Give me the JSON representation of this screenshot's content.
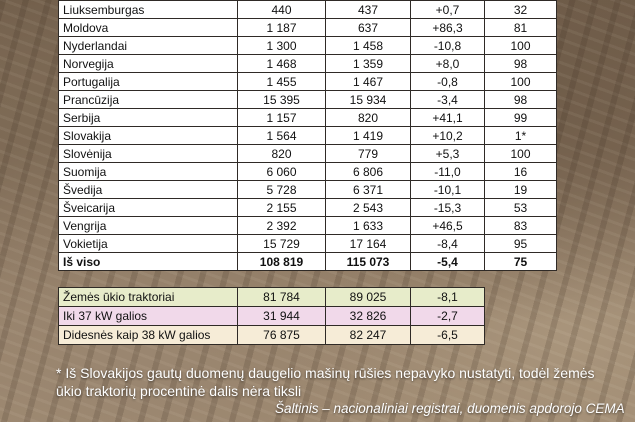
{
  "main_rows": [
    {
      "country": "Liuksemburgas",
      "v1": "440",
      "v2": "437",
      "change": "+0,7",
      "share": "32"
    },
    {
      "country": "Moldova",
      "v1": "1 187",
      "v2": "637",
      "change": "+86,3",
      "share": "81"
    },
    {
      "country": "Nyderlandai",
      "v1": "1 300",
      "v2": "1 458",
      "change": "-10,8",
      "share": "100"
    },
    {
      "country": "Norvegija",
      "v1": "1 468",
      "v2": "1 359",
      "change": "+8,0",
      "share": "98"
    },
    {
      "country": "Portugalija",
      "v1": "1 455",
      "v2": "1 467",
      "change": "-0,8",
      "share": "100"
    },
    {
      "country": "Prancūzija",
      "v1": "15 395",
      "v2": "15 934",
      "change": "-3,4",
      "share": "98"
    },
    {
      "country": "Serbija",
      "v1": "1 157",
      "v2": "820",
      "change": "+41,1",
      "share": "99"
    },
    {
      "country": "Slovakija",
      "v1": "1 564",
      "v2": "1 419",
      "change": "+10,2",
      "share": "1*"
    },
    {
      "country": "Slovėnija",
      "v1": "820",
      "v2": "779",
      "change": "+5,3",
      "share": "100"
    },
    {
      "country": "Suomija",
      "v1": "6 060",
      "v2": "6 806",
      "change": "-11,0",
      "share": "16"
    },
    {
      "country": "Švedija",
      "v1": "5 728",
      "v2": "6 371",
      "change": "-10,1",
      "share": "19"
    },
    {
      "country": "Šveicarija",
      "v1": "2 155",
      "v2": "2 543",
      "change": "-15,3",
      "share": "53"
    },
    {
      "country": "Vengrija",
      "v1": "2 392",
      "v2": "1 633",
      "change": "+46,5",
      "share": "83"
    },
    {
      "country": "Vokietija",
      "v1": "15 729",
      "v2": "17 164",
      "change": "-8,4",
      "share": "95"
    }
  ],
  "total": {
    "label": "Iš viso",
    "v1": "108 819",
    "v2": "115 073",
    "change": "-5,4",
    "share": "75"
  },
  "sub_rows": [
    {
      "label": "Žemės ūkio traktoriai",
      "v1": "81 784",
      "v2": "89 025",
      "change": "-8,1"
    },
    {
      "label": "Iki 37 kW galios",
      "v1": "31 944",
      "v2": "32 826",
      "change": "-2,7"
    },
    {
      "label": "Didesnės kaip 38 kW galios",
      "v1": "76 875",
      "v2": "82 247",
      "change": "-6,5"
    }
  ],
  "footnote": "* Iš Slovakijos gautų duomenų daugelio mašinų rūšies nepavyko nustatyti, todėl žemės ūkio traktorių procentinė dalis nėra tiksli",
  "source": "Šaltinis – nacionaliniai registrai, duomenis apdorojo CEMA"
}
